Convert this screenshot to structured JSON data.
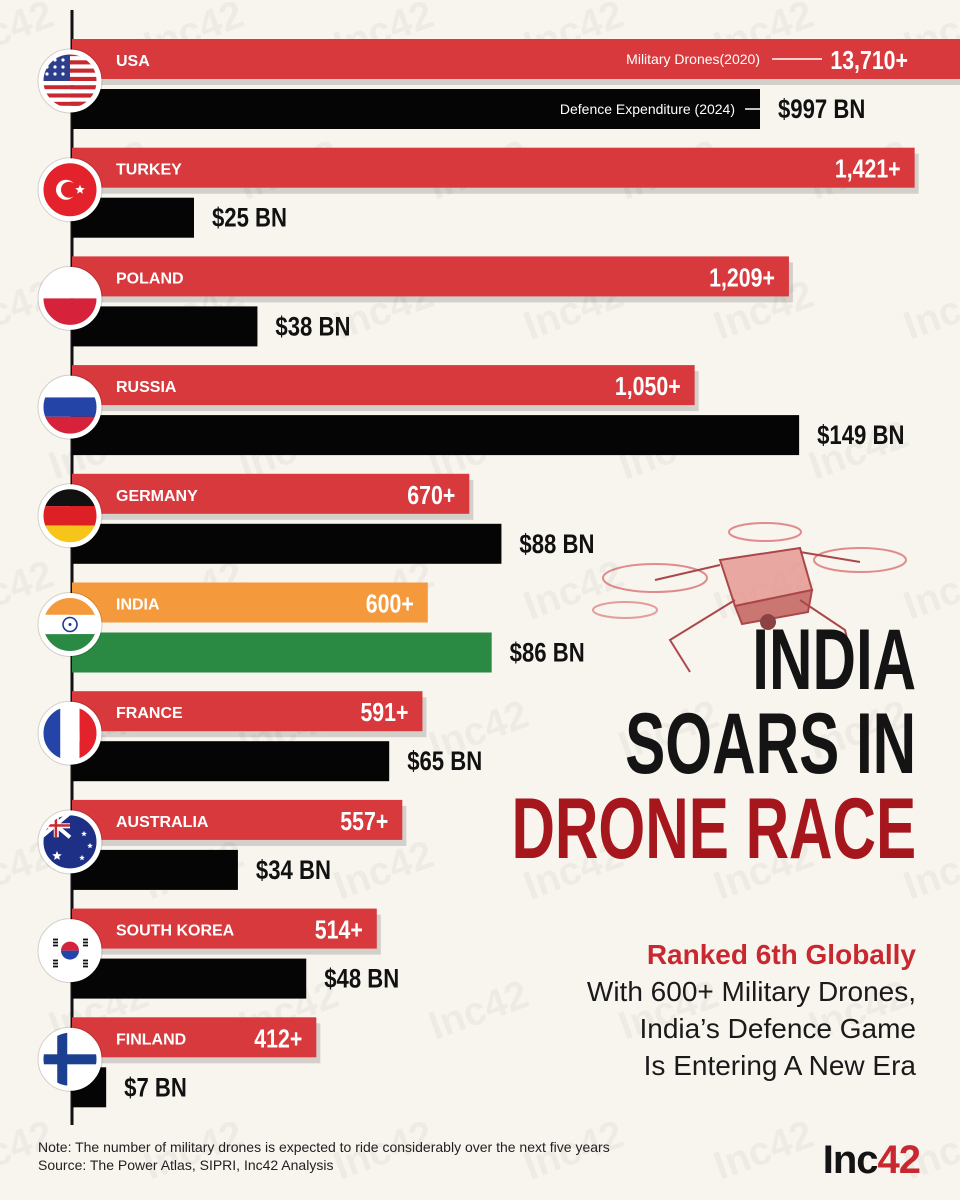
{
  "chart_data": {
    "type": "bar",
    "title": "India Soars In Drone Race",
    "series_labels": {
      "drones": "Military Drones(2020)",
      "expenditure": "Defence Expenditure (2024)"
    },
    "categories": [
      "USA",
      "TURKEY",
      "POLAND",
      "RUSSIA",
      "GERMANY",
      "INDIA",
      "FRANCE",
      "AUSTRALIA",
      "SOUTH KOREA",
      "FINLAND"
    ],
    "series": [
      {
        "name": "Military Drones (2020)",
        "values": [
          13710,
          1421,
          1209,
          1050,
          670,
          600,
          591,
          557,
          514,
          412
        ],
        "labels": [
          "13,710+",
          "1,421+",
          "1,209+",
          "1,050+",
          "670+",
          "600+",
          "591+",
          "557+",
          "514+",
          "412+"
        ]
      },
      {
        "name": "Defence Expenditure (2024, $ BN)",
        "values": [
          997,
          25,
          38,
          149,
          88,
          86,
          65,
          34,
          48,
          7
        ],
        "labels": [
          "$997 BN",
          "$25 BN",
          "$38 BN",
          "$149 BN",
          "$88 BN",
          "$86 BN",
          "$65 BN",
          "$34 BN",
          "$48 BN",
          "$7 BN"
        ]
      }
    ],
    "highlight": "INDIA",
    "colors": {
      "drones": "#d7393d",
      "expenditure": "#050505",
      "india_drones": "#f59a3c",
      "india_expenditure": "#2a8a43"
    }
  },
  "flags": [
    "us-flag-icon",
    "turkey-flag-icon",
    "poland-flag-icon",
    "russia-flag-icon",
    "germany-flag-icon",
    "india-flag-icon",
    "france-flag-icon",
    "australia-flag-icon",
    "south-korea-flag-icon",
    "finland-flag-icon"
  ],
  "headline": {
    "line1": "INDIA",
    "line2": "SOARS IN",
    "line3": "DRONE RACE"
  },
  "subheading": {
    "accent": "Ranked 6th Globally",
    "line1": "With 600+ Military Drones,",
    "line2": "India’s Defence Game",
    "line3": "Is Entering A New Era"
  },
  "footer": {
    "note": "Note: The number of military drones is expected to ride considerably over the next five years",
    "source": "Source: The Power Atlas, SIPRI, Inc42 Analysis"
  },
  "logo": {
    "text": "Inc",
    "number": "42"
  },
  "watermark": "Inc42",
  "colors": {
    "background": "#f8f4ee",
    "accent": "#c8282f",
    "headline_dark": "#141414"
  }
}
